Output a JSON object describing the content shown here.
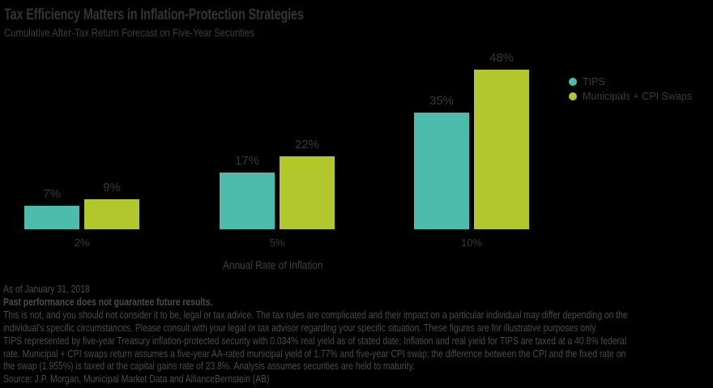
{
  "header": {
    "title": "Tax Efficiency Matters in Inflation-Protection Strategies",
    "subtitle": "Cumulative After-Tax Return Forecast on Five-Year Securities"
  },
  "colors": {
    "background": "#000000",
    "tips": "#4DBCAC",
    "municipals": "#B1C72C",
    "title_text": "#343434",
    "footnote_text": "#4B4B4B"
  },
  "legend": [
    {
      "label": "TIPS",
      "color": "#4DBCAC"
    },
    {
      "label": "Municipals + CPI Swaps",
      "color": "#B1C72C"
    }
  ],
  "chart_data": {
    "type": "bar",
    "title": "Tax Efficiency Matters in Inflation-Protection Strategies",
    "subtitle": "Cumulative After-Tax Return Forecast on Five-Year Securities",
    "categories": [
      "2%",
      "5%",
      "10%"
    ],
    "series": [
      {
        "name": "TIPS",
        "color": "#4DBCAC",
        "values": [
          7,
          17,
          35
        ]
      },
      {
        "name": "Municipals + CPI Swaps",
        "color": "#B1C72C",
        "values": [
          9,
          22,
          48
        ]
      }
    ],
    "value_label_unit": "%",
    "xlabel": "Annual Rate of Inflation",
    "ylabel": "",
    "ylim": [
      0,
      50
    ],
    "grid": false,
    "legend_position": "right",
    "value_labels_shown": true
  },
  "footnotes": {
    "lines": [
      {
        "text": "As of January 31, 2018",
        "bold": false
      },
      {
        "text": "Past performance does not guarantee future results.",
        "bold": true
      },
      {
        "text": "This is not, and you should not consider it to be, legal or tax advice. The tax rules are complicated and their impact on a particular individual may differ depending on the",
        "bold": false
      },
      {
        "text": "individual's specific circumstances. Please consult with your legal or tax advisor regarding your specific situation. These figures are for illustrative purposes only.",
        "bold": false
      },
      {
        "text": "TIPS represented by five-year Treasury inflation-protected security with 0.034% real yield as of stated date; Inflation and real yield for TIPS are taxed at a 40.8% federal",
        "bold": false
      },
      {
        "text": "rate. Municipal + CPI swaps return assumes a five-year AA-rated municipal yield of 1.77%  and five-year CPI swap; the difference between the CPI and the fixed rate on",
        "bold": false
      },
      {
        "text": "the swap (1.955%) is taxed at the capital gains rate of 23.8%. Analysis assumes securities are held to maturity.",
        "bold": false
      },
      {
        "text": "Source: J.P. Morgan, Municipal Market Data and AllianceBernstein (AB)",
        "bold": false
      }
    ]
  }
}
